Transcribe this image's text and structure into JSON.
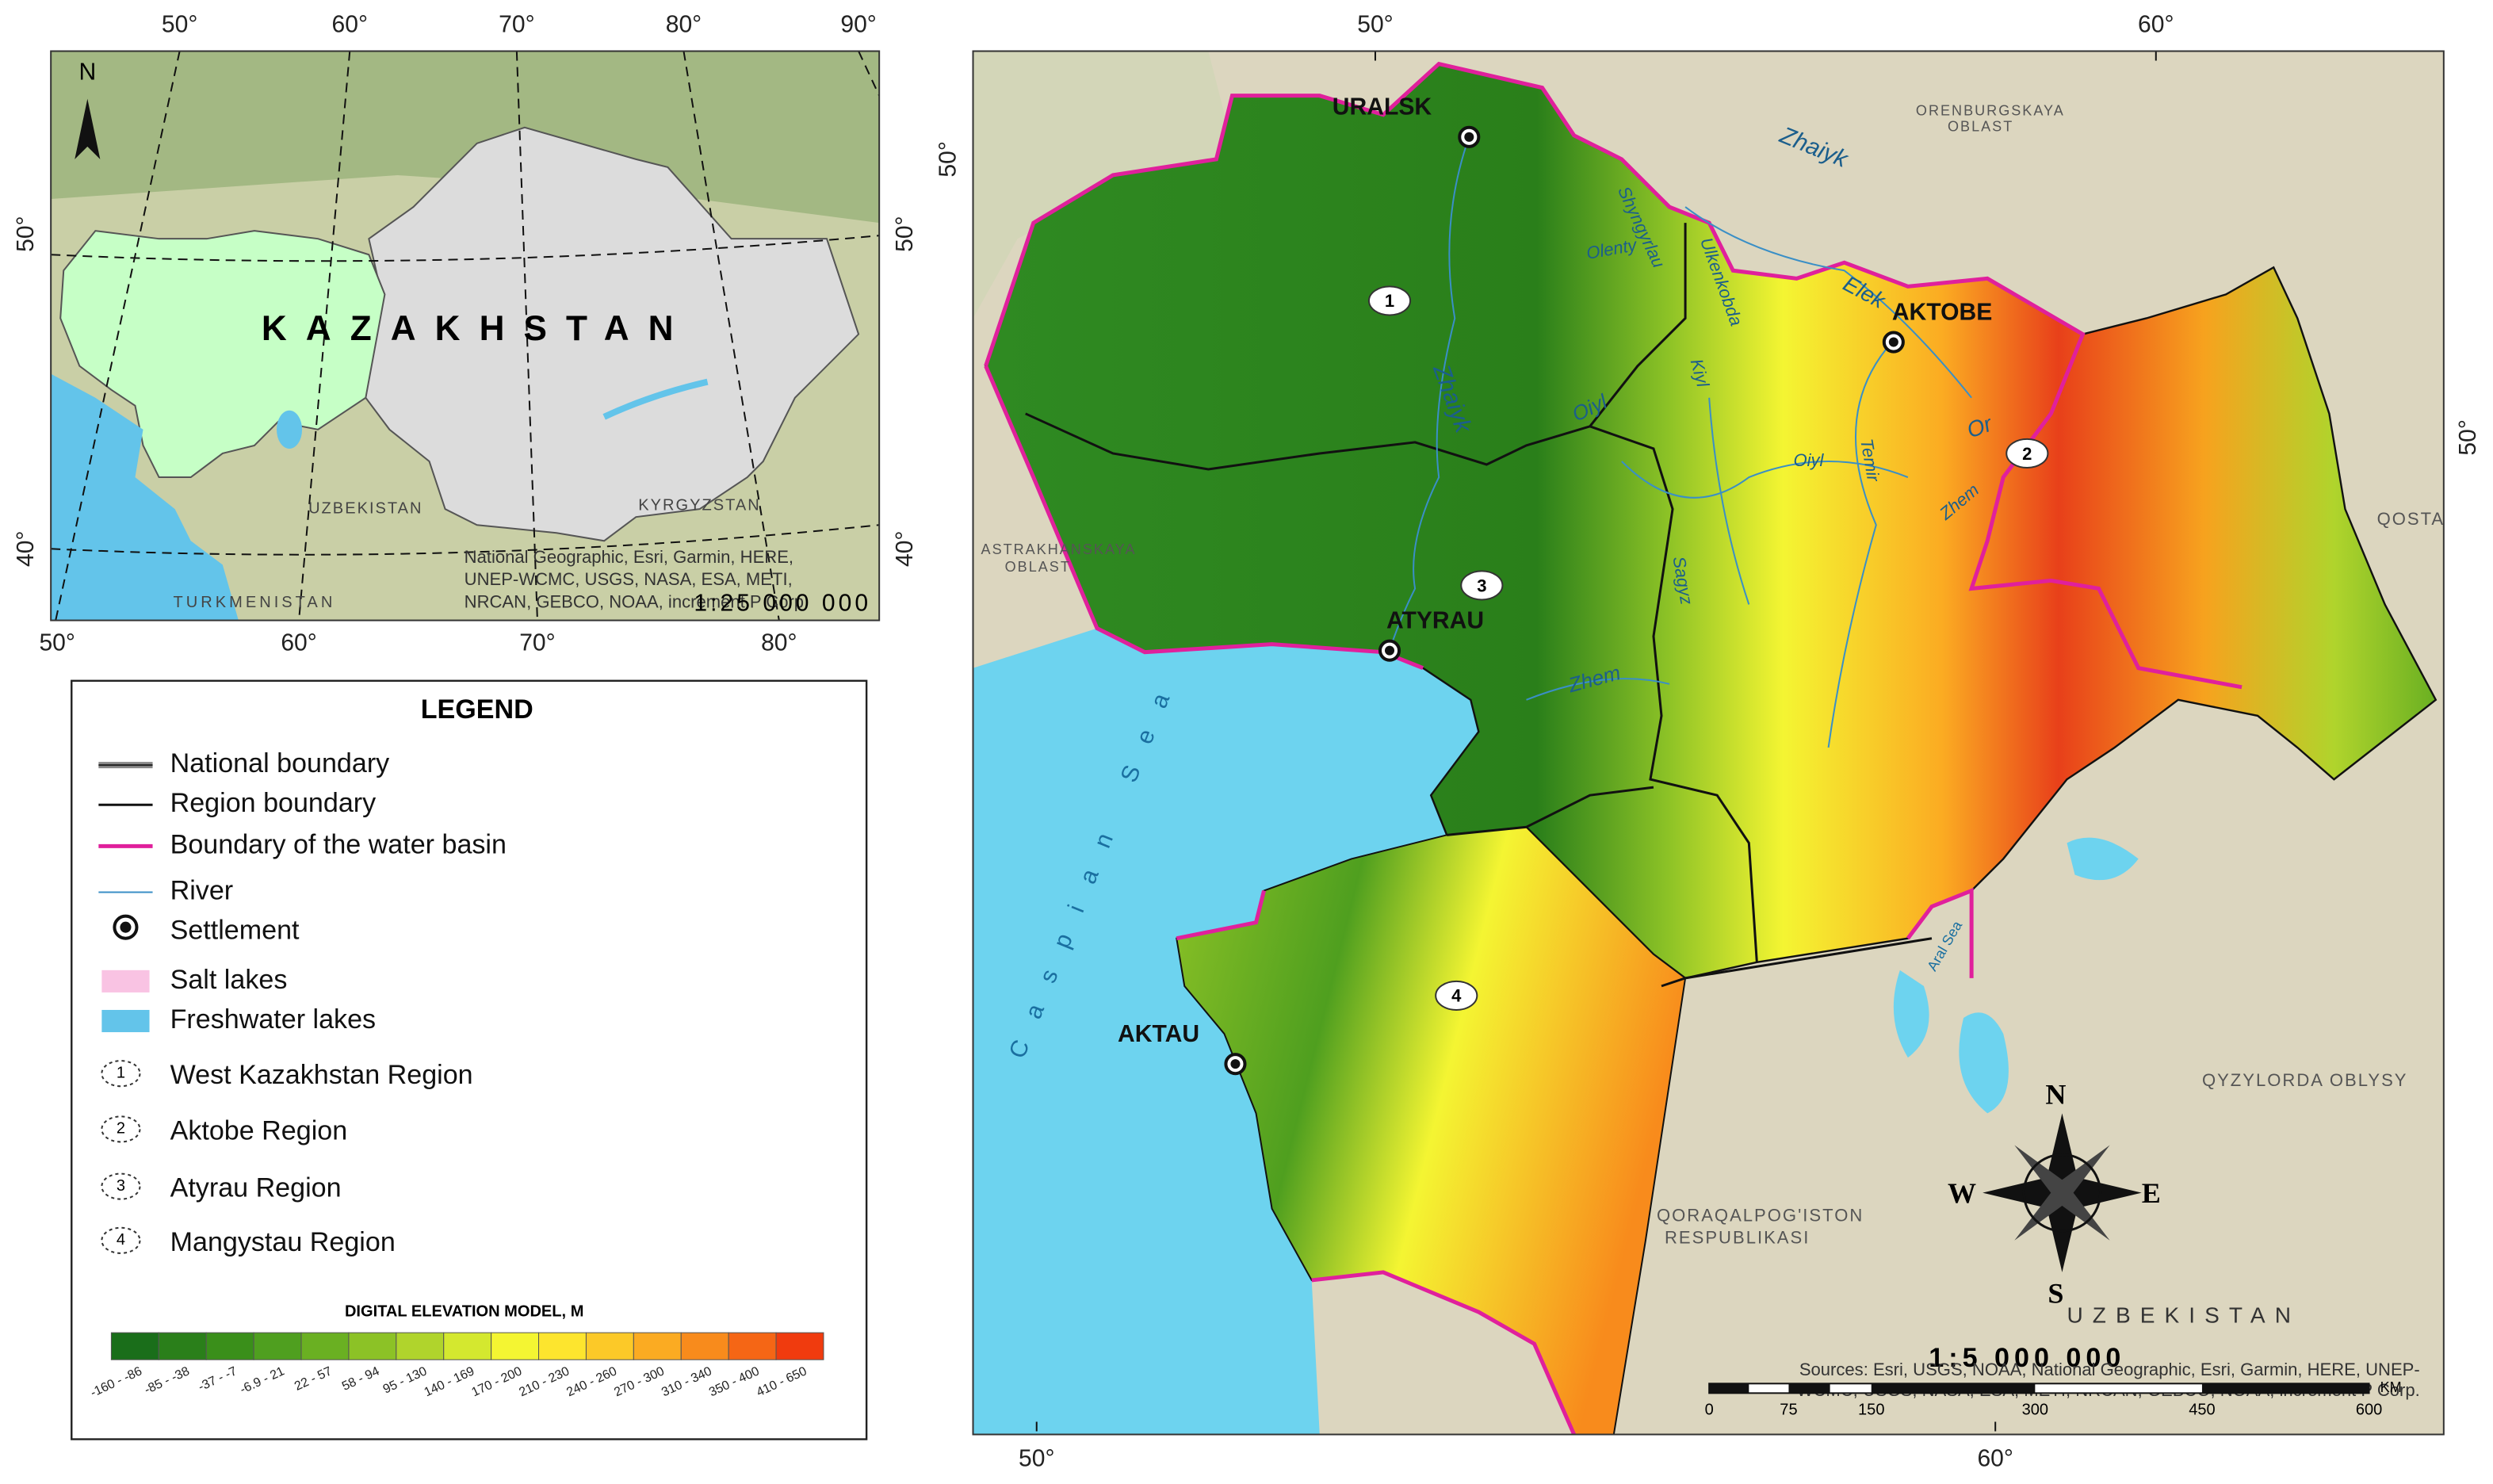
{
  "inset_map": {
    "lon_top": [
      "50°",
      "60°",
      "70°",
      "80°",
      "90°"
    ],
    "lon_bottom": [
      "50°",
      "60°",
      "70°",
      "80°"
    ],
    "lat_left": [
      "50°",
      "40°"
    ],
    "lat_right": [
      "50°",
      "40°"
    ],
    "north": "N",
    "country": "KAZAKHSTAN",
    "neighbors": [
      "UZBEKISTAN",
      "KYRGYZSTAN",
      "TURKMENISTAN"
    ],
    "credits": [
      "National Geographic, Esri, Garmin, HERE,",
      "UNEP-WCMC, USGS, NASA, ESA, METI,",
      "NRCAN, GEBCO, NOAA, increment P Corp."
    ],
    "scale": "1:25 000 000"
  },
  "legend": {
    "title": "LEGEND",
    "items": [
      "National boundary",
      "Region boundary",
      "Boundary of the water basin",
      "River",
      "Settlement",
      "Salt lakes",
      "Freshwater lakes"
    ],
    "regions": [
      {
        "number": "1",
        "name": "West Kazakhstan Region"
      },
      {
        "number": "2",
        "name": "Aktobe Region"
      },
      {
        "number": "3",
        "name": "Atyrau Region"
      },
      {
        "number": "4",
        "name": "Mangystau Region"
      }
    ],
    "dem": {
      "title": "DIGITAL ELEVATION MODEL, M",
      "classes": [
        {
          "label": "-160 - -86",
          "color": "#1a6e1a"
        },
        {
          "label": "-85 - -38",
          "color": "#2a7f1a"
        },
        {
          "label": "-37 - -7",
          "color": "#3a8f1a"
        },
        {
          "label": "-6.9 - 21",
          "color": "#4f9f1f"
        },
        {
          "label": "22 - 57",
          "color": "#6ab022"
        },
        {
          "label": "58 - 94",
          "color": "#8cc226"
        },
        {
          "label": "95 - 130",
          "color": "#b0d42c"
        },
        {
          "label": "140 - 169",
          "color": "#d4e82f"
        },
        {
          "label": "170 - 200",
          "color": "#f4f532"
        },
        {
          "label": "210 - 230",
          "color": "#fde52e"
        },
        {
          "label": "240 - 260",
          "color": "#fcc928"
        },
        {
          "label": "270 - 300",
          "color": "#fbab22"
        },
        {
          "label": "310 - 340",
          "color": "#f88b1c"
        },
        {
          "label": "350 - 400",
          "color": "#f56615"
        },
        {
          "label": "410 - 650",
          "color": "#f03b0e"
        }
      ]
    }
  },
  "main_map": {
    "lon_top": [
      "50°",
      "60°"
    ],
    "lon_bottom": [
      "50°",
      "60°"
    ],
    "lat_left": [
      "50°"
    ],
    "lat_right": [
      "50°"
    ],
    "cities": [
      "URALSK",
      "AKTOBE",
      "ATYRAU",
      "AKTAU"
    ],
    "rivers": [
      "Zhaiyk",
      "Zhaiyk",
      "Elek",
      "Or",
      "Zhem",
      "Zhem",
      "Oiyl",
      "Oiyl",
      "Kiyl",
      "Temir",
      "Ulkenkobda",
      "Olenty",
      "Shyngyrlau",
      "Sagyz"
    ],
    "seas": [
      "Caspian Sea",
      "Aral Sea"
    ],
    "places": [
      "ORENBURGSKAYA",
      "OBLAST",
      "ASTRAKHANSKAYA",
      "OBLAST",
      "QYZYLORDA OBLYSY",
      "QORAQALPOG'ISTON",
      "RESPUBLIKASI",
      "UZBEKISTAN",
      "QOSTA"
    ],
    "compass": [
      "N",
      "S",
      "W",
      "E"
    ],
    "scale": "1:5 000 000",
    "scale_ticks": [
      "0",
      "75",
      "150",
      "300",
      "450",
      "600"
    ],
    "scale_unit": "KM",
    "sources": [
      "Sources: Esri, USGS, NOAA, National Geographic, Esri, Garmin, HERE, UNEP-",
      "WCMC, USGS, NASA, ESA, METI, NRCAN, GEBCO, NOAA, increment P Corp."
    ]
  }
}
